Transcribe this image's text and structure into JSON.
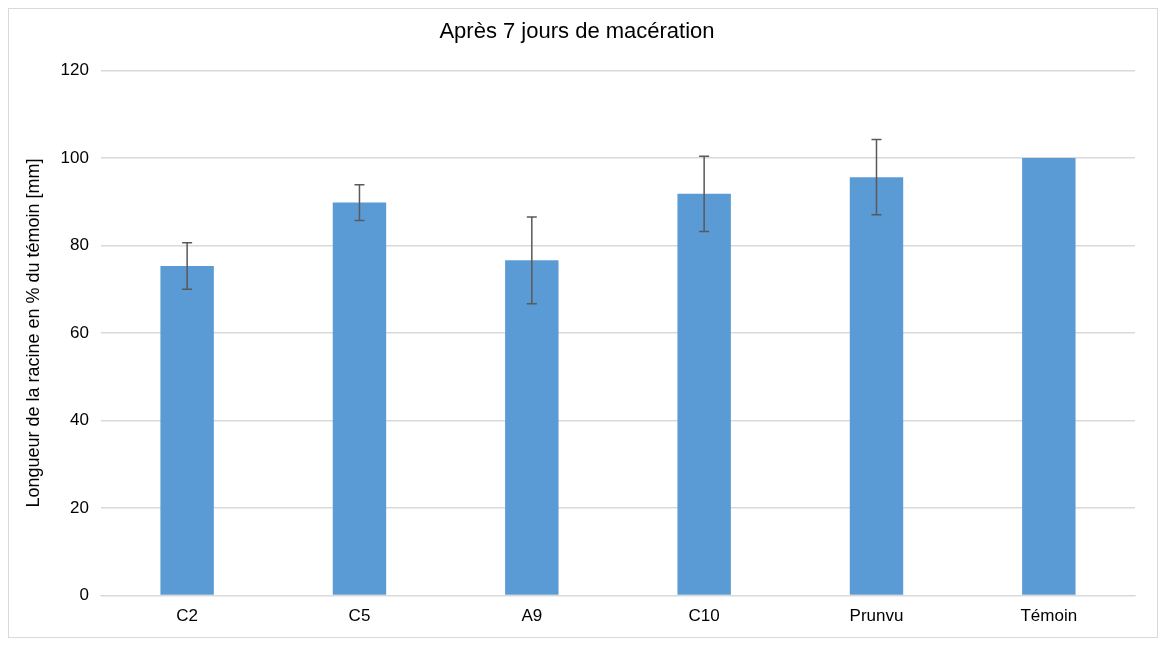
{
  "chart_data": {
    "type": "bar",
    "title": "Après 7 jours de macération",
    "ylabel": "Longueur de la racine en % du témoin [mm]",
    "categories": [
      "C2",
      "C5",
      "A9",
      "C10",
      "Prunvu",
      "Témoin"
    ],
    "values": [
      75.3,
      89.8,
      76.6,
      91.8,
      95.6,
      100
    ],
    "errors": [
      5.3,
      4.1,
      9.9,
      8.6,
      8.6,
      null
    ],
    "color": "#5b9bd5",
    "ylim": [
      0,
      120
    ],
    "yticks": [
      0,
      20,
      40,
      60,
      80,
      100,
      120
    ],
    "grid": "y",
    "legend": false
  }
}
